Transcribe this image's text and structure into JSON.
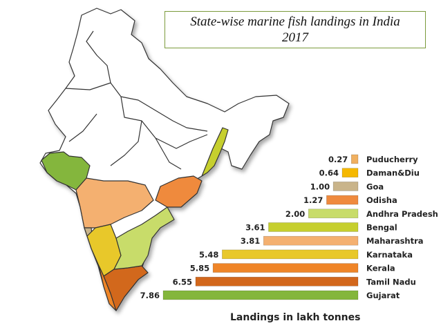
{
  "title_line1": "State-wise marine fish landings in India",
  "title_line2": "2017",
  "chart_data": {
    "type": "bar",
    "orientation": "horizontal",
    "title": "State-wise marine fish landings in India 2017",
    "xlabel": "Landings in lakh tonnes",
    "ylabel": "",
    "categories": [
      "Puducherry",
      "Daman&Diu",
      "Goa",
      "Odisha",
      "Andhra Pradesh",
      "Bengal",
      "Maharashtra",
      "Karnataka",
      "Kerala",
      "Tamil Nadu",
      "Gujarat"
    ],
    "values": [
      0.27,
      0.64,
      1.0,
      1.27,
      2.0,
      3.61,
      3.81,
      5.48,
      5.85,
      6.55,
      7.86
    ],
    "value_labels": [
      "0.27",
      "0.64",
      "1.00",
      "1.27",
      "2.00",
      "3.61",
      "3.81",
      "5.48",
      "5.85",
      "6.55",
      "7.86"
    ],
    "colors": [
      "#f0b060",
      "#f5b800",
      "#c9b48a",
      "#ef8a3e",
      "#c8dc6a",
      "#c6cf2e",
      "#f4b070",
      "#e8c82a",
      "#ef8528",
      "#d2671c",
      "#84b63c"
    ],
    "xlim": [
      0,
      7.86
    ],
    "grid": false,
    "legend": "none"
  },
  "map": {
    "state_colors": {
      "Gujarat": "#84b63c",
      "Maharashtra": "#f4b070",
      "Goa": "#c9b48a",
      "Karnataka": "#e8c82a",
      "Kerala": "#ef8528",
      "Tamil Nadu": "#d2671c",
      "Andhra Pradesh": "#c8dc6a",
      "Odisha": "#ef8a3e",
      "Bengal": "#c6cf2e"
    }
  }
}
